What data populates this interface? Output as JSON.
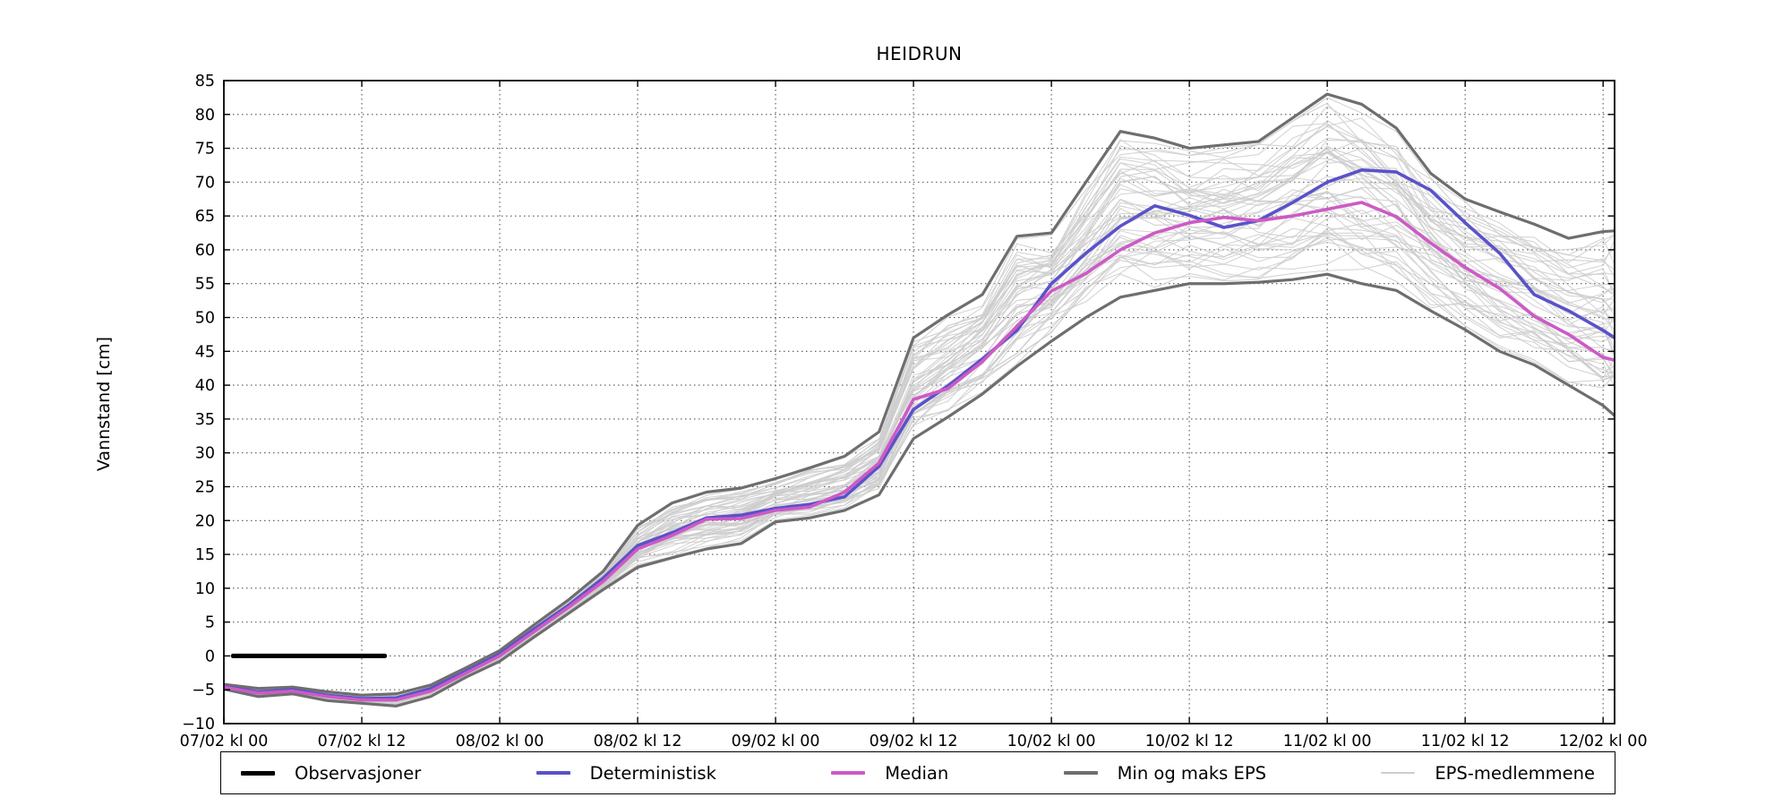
{
  "chart_data": {
    "type": "line",
    "title": "HEIDRUN",
    "ylabel": "Vannstand [cm]",
    "xlabel": "",
    "ylim": [
      -10,
      85
    ],
    "y_tick_step": 5,
    "y_tick_labels": [
      "85",
      "80",
      "75",
      "70",
      "65",
      "60",
      "55",
      "50",
      "45",
      "40",
      "35",
      "30",
      "25",
      "20",
      "15",
      "10",
      "5",
      "0",
      "−5",
      "−10"
    ],
    "y_tick_values": [
      85,
      80,
      75,
      70,
      65,
      60,
      55,
      50,
      45,
      40,
      35,
      30,
      25,
      20,
      15,
      10,
      5,
      0,
      -5,
      -10
    ],
    "xlim_hours": [
      0,
      121
    ],
    "x_tick_hours": [
      0,
      12,
      24,
      36,
      48,
      60,
      72,
      84,
      96,
      108,
      120
    ],
    "x_tick_labels": [
      "07/02 kl 00",
      "07/02 kl 12",
      "08/02 kl 00",
      "08/02 kl 12",
      "09/02 kl 00",
      "09/02 kl 12",
      "10/02 kl 00",
      "10/02 kl 12",
      "11/02 kl 00",
      "11/02 kl 12",
      "12/02 kl 00"
    ],
    "grid": true,
    "grid_style": "dotted",
    "legend_position": "bottom",
    "colors": {
      "observations": "#000000",
      "deterministic": "#5a52c9",
      "median": "#cd5ac5",
      "min_max_eps": "#6e6e6e",
      "eps_members": "#cdcdcd",
      "grid": "#555555",
      "frame": "#000000"
    },
    "sample_hours": [
      0,
      3,
      6,
      9,
      12,
      15,
      18,
      21,
      24,
      27,
      30,
      33,
      36,
      39,
      42,
      45,
      48,
      51,
      54,
      57,
      60,
      63,
      66,
      69,
      72,
      75,
      78,
      81,
      84,
      87,
      90,
      93,
      96,
      99,
      102,
      105,
      108,
      111,
      114,
      117,
      120,
      121
    ],
    "series": [
      {
        "name": "Observasjoner",
        "role": "observations",
        "width": 5,
        "hours": [
          0.8,
          14
        ],
        "values": [
          0,
          0
        ]
      },
      {
        "name": "Maks EPS",
        "role": "min_max_eps",
        "width": 3.2,
        "hours": "sample_hours",
        "values": [
          -4.2,
          -4.8,
          -4.6,
          -5.3,
          -5.8,
          -5.6,
          -4.3,
          -1.8,
          0.8,
          4.6,
          8.3,
          12.5,
          19.3,
          22.6,
          24.2,
          24.8,
          26.2,
          27.8,
          29.5,
          33.1,
          47.0,
          50.4,
          53.4,
          62.0,
          62.5,
          70.0,
          77.5,
          76.5,
          75.0,
          75.5,
          76.0,
          79.5,
          83.0,
          81.5,
          78.0,
          71.3,
          67.5,
          65.6,
          63.8,
          61.7,
          62.7,
          62.8
        ]
      },
      {
        "name": "Min EPS",
        "role": "min_max_eps",
        "width": 3.2,
        "hours": "sample_hours",
        "values": [
          -4.9,
          -6.0,
          -5.6,
          -6.6,
          -7.0,
          -7.4,
          -6.0,
          -3.2,
          -0.8,
          2.8,
          6.3,
          9.8,
          13.1,
          14.5,
          15.8,
          16.6,
          19.8,
          20.4,
          21.5,
          23.8,
          32.1,
          35.3,
          38.7,
          42.8,
          46.5,
          50.0,
          53.0,
          54.0,
          55.0,
          55.0,
          55.2,
          55.6,
          56.4,
          55.0,
          54.0,
          51.0,
          48.2,
          45.0,
          43.0,
          40.0,
          37.0,
          35.5
        ]
      },
      {
        "name": "Deterministisk",
        "role": "deterministic",
        "width": 3.6,
        "hours": "sample_hours",
        "values": [
          -4.5,
          -5.3,
          -5.0,
          -5.8,
          -6.3,
          -6.2,
          -4.8,
          -2.3,
          0.3,
          4.0,
          7.5,
          11.5,
          16.3,
          18.2,
          20.4,
          20.8,
          21.8,
          22.4,
          23.5,
          28.0,
          36.4,
          39.9,
          43.9,
          48.1,
          55.0,
          59.5,
          63.5,
          66.5,
          65.1,
          63.3,
          64.3,
          67.0,
          70.0,
          71.8,
          71.5,
          68.8,
          64.0,
          59.5,
          53.4,
          51.0,
          48.1,
          47.0
        ]
      },
      {
        "name": "Median",
        "role": "median",
        "width": 3.6,
        "hours": "sample_hours",
        "values": [
          -4.6,
          -5.5,
          -5.2,
          -6.0,
          -6.5,
          -6.5,
          -5.2,
          -2.6,
          0.0,
          3.6,
          7.2,
          11.0,
          15.8,
          17.8,
          20.2,
          20.3,
          21.5,
          22.0,
          24.2,
          28.5,
          37.9,
          39.5,
          43.5,
          48.7,
          53.9,
          56.5,
          60.0,
          62.5,
          64.0,
          64.8,
          64.3,
          65.0,
          66.0,
          67.0,
          64.9,
          61.0,
          57.4,
          54.3,
          50.2,
          47.5,
          44.1,
          43.7
        ]
      }
    ],
    "eps_members": {
      "count": 50,
      "width": 1.1,
      "note": "ensemble members drawn between Min EPS and Maks EPS envelope"
    },
    "legend": [
      {
        "label": "Observasjoner",
        "role": "observations",
        "lw": 5
      },
      {
        "label": "Deterministisk",
        "role": "deterministic",
        "lw": 3.6
      },
      {
        "label": "Median",
        "role": "median",
        "lw": 3.6
      },
      {
        "label": "Min og maks EPS",
        "role": "min_max_eps",
        "lw": 3.2
      },
      {
        "label": "EPS-medlemmene",
        "role": "eps_members",
        "lw": 1.5
      }
    ]
  }
}
